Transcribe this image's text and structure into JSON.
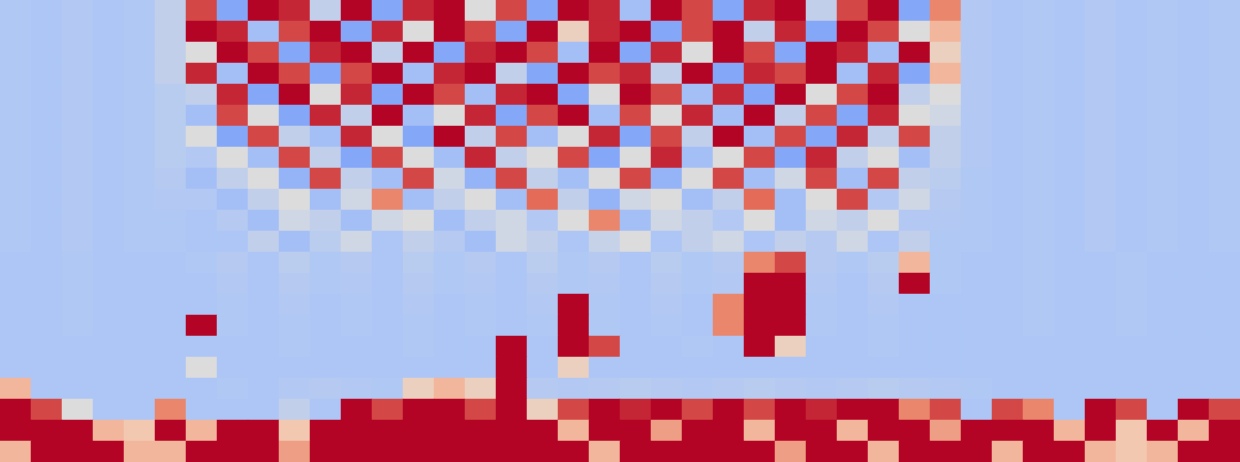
{
  "chart_data": {
    "type": "heatmap",
    "grid": false,
    "tick_labels": false,
    "color": [
      "#3b4cc0",
      "#7b9ff9",
      "#aec7f5",
      "#dddcdc",
      "#f4c6ac",
      "#e8765c",
      "#b40426"
    ],
    "color_range": [
      0,
      1
    ],
    "cells": [
      [
        0.34,
        0.33,
        0.35,
        0.33,
        0.34,
        0.4,
        0.9,
        0.2,
        1,
        0.95,
        0.4,
        1,
        0.2,
        0.95,
        1,
        0.5,
        0.9,
        0.2,
        1,
        0.95,
        0.3,
        1,
        0.9,
        0.2,
        0.95,
        1,
        0.4,
        0.9,
        1,
        0.2,
        0.8,
        0.35,
        0.33,
        0.34,
        0.33,
        0.35,
        0.33,
        0.34,
        0.33,
        0.34
      ],
      [
        0.34,
        0.33,
        0.35,
        0.33,
        0.34,
        0.4,
        1,
        0.95,
        0.3,
        0.9,
        1,
        0.2,
        0.95,
        0.5,
        1,
        0.9,
        0.2,
        1,
        0.6,
        0.95,
        1,
        0.2,
        0.9,
        1,
        0.4,
        0.95,
        0.2,
        1,
        0.9,
        0.5,
        0.7,
        0.35,
        0.33,
        0.34,
        0.33,
        0.35,
        0.33,
        0.34,
        0.33,
        0.34
      ],
      [
        0.34,
        0.33,
        0.35,
        0.33,
        0.34,
        0.4,
        0.5,
        1,
        0.9,
        0.2,
        0.95,
        1,
        0.4,
        1,
        0.2,
        0.95,
        1,
        0.9,
        0.3,
        1,
        0.2,
        0.95,
        0.5,
        1,
        0.9,
        0.2,
        1,
        0.95,
        0.3,
        1,
        0.6,
        0.35,
        0.33,
        0.34,
        0.33,
        0.35,
        0.33,
        0.34,
        0.33,
        0.34
      ],
      [
        0.34,
        0.33,
        0.35,
        0.33,
        0.34,
        0.4,
        0.95,
        0.3,
        1,
        0.9,
        0.2,
        0.9,
        1,
        0.3,
        0.95,
        1,
        0.4,
        0.2,
        1,
        0.9,
        0.95,
        0.4,
        1,
        0.2,
        0.95,
        0.9,
        1,
        0.3,
        0.95,
        0.2,
        0.7,
        0.35,
        0.33,
        0.34,
        0.33,
        0.35,
        0.33,
        0.34,
        0.33,
        0.34
      ],
      [
        0.34,
        0.33,
        0.35,
        0.33,
        0.34,
        0.37,
        0.4,
        0.95,
        0.2,
        1,
        0.5,
        0.95,
        0.2,
        1,
        0.9,
        0.3,
        0.95,
        1,
        0.2,
        0.5,
        1,
        0.9,
        0.3,
        0.95,
        0.2,
        1,
        0.5,
        0.9,
        1,
        0.4,
        0.5,
        0.35,
        0.33,
        0.34,
        0.33,
        0.35,
        0.33,
        0.34,
        0.33,
        0.34
      ],
      [
        0.34,
        0.33,
        0.35,
        0.33,
        0.34,
        0.37,
        0.3,
        0.9,
        0.5,
        0.2,
        0.95,
        0.4,
        1,
        0.3,
        0.5,
        0.95,
        0.2,
        0.9,
        1,
        0.3,
        0.9,
        0.5,
        0.95,
        0.3,
        1,
        0.4,
        0.9,
        0.2,
        0.95,
        0.5,
        0.45,
        0.35,
        0.33,
        0.34,
        0.33,
        0.35,
        0.33,
        0.34,
        0.33,
        0.34
      ],
      [
        0.34,
        0.33,
        0.35,
        0.33,
        0.34,
        0.37,
        0.5,
        0.2,
        0.9,
        0.4,
        0.3,
        0.95,
        0.5,
        0.2,
        1,
        0.4,
        0.9,
        0.3,
        0.5,
        0.95,
        0.2,
        0.9,
        0.4,
        1,
        0.3,
        0.9,
        0.2,
        0.95,
        0.4,
        0.9,
        0.4,
        0.35,
        0.33,
        0.34,
        0.33,
        0.35,
        0.33,
        0.34,
        0.33,
        0.34
      ],
      [
        0.34,
        0.33,
        0.35,
        0.33,
        0.34,
        0.37,
        0.35,
        0.5,
        0.3,
        0.9,
        0.4,
        0.2,
        0.9,
        0.5,
        0.3,
        0.95,
        0.4,
        0.5,
        0.9,
        0.2,
        0.5,
        0.95,
        0.3,
        0.5,
        0.9,
        0.2,
        0.95,
        0.4,
        0.5,
        0.3,
        0.4,
        0.35,
        0.33,
        0.34,
        0.33,
        0.35,
        0.33,
        0.34,
        0.33,
        0.34
      ],
      [
        0.34,
        0.33,
        0.35,
        0.33,
        0.34,
        0.36,
        0.3,
        0.4,
        0.5,
        0.25,
        0.9,
        0.4,
        0.3,
        0.9,
        0.45,
        0.25,
        0.9,
        0.4,
        0.3,
        0.5,
        0.9,
        0.25,
        0.5,
        0.9,
        0.3,
        0.45,
        0.9,
        0.3,
        0.9,
        0.4,
        0.38,
        0.34,
        0.33,
        0.34,
        0.33,
        0.35,
        0.33,
        0.34,
        0.33,
        0.34
      ],
      [
        0.34,
        0.33,
        0.35,
        0.33,
        0.34,
        0.35,
        0.35,
        0.3,
        0.4,
        0.5,
        0.3,
        0.45,
        0.8,
        0.3,
        0.4,
        0.5,
        0.3,
        0.85,
        0.4,
        0.25,
        0.45,
        0.5,
        0.3,
        0.4,
        0.85,
        0.3,
        0.5,
        0.9,
        0.35,
        0.45,
        0.36,
        0.34,
        0.33,
        0.34,
        0.33,
        0.35,
        0.33,
        0.34,
        0.33,
        0.34
      ],
      [
        0.34,
        0.33,
        0.35,
        0.33,
        0.34,
        0.34,
        0.33,
        0.36,
        0.3,
        0.45,
        0.4,
        0.3,
        0.45,
        0.5,
        0.3,
        0.4,
        0.45,
        0.35,
        0.5,
        0.8,
        0.3,
        0.45,
        0.4,
        0.35,
        0.5,
        0.3,
        0.45,
        0.4,
        0.5,
        0.35,
        0.35,
        0.34,
        0.33,
        0.34,
        0.33,
        0.35,
        0.33,
        0.34,
        0.33,
        0.34
      ],
      [
        0.34,
        0.33,
        0.35,
        0.33,
        0.34,
        0.34,
        0.33,
        0.33,
        0.4,
        0.3,
        0.38,
        0.45,
        0.33,
        0.4,
        0.36,
        0.3,
        0.45,
        0.4,
        0.33,
        0.42,
        0.5,
        0.33,
        0.4,
        0.45,
        0.33,
        0.4,
        0.36,
        0.45,
        0.33,
        0.4,
        0.34,
        0.34,
        0.33,
        0.34,
        0.33,
        0.35,
        0.33,
        0.34,
        0.33,
        0.34
      ],
      [
        0.33,
        0.33,
        0.34,
        0.33,
        0.33,
        0.33,
        0.34,
        0.36,
        0.33,
        0.38,
        0.34,
        0.36,
        0.33,
        0.37,
        0.34,
        0.36,
        0.33,
        0.38,
        0.34,
        0.36,
        0.33,
        0.37,
        0.34,
        0.36,
        0.8,
        0.9,
        0.36,
        0.34,
        0.37,
        0.7,
        0.34,
        0.33,
        0.33,
        0.34,
        0.33,
        0.33,
        0.34,
        0.33,
        0.33,
        0.33
      ],
      [
        0.33,
        0.33,
        0.34,
        0.33,
        0.33,
        0.33,
        0.33,
        0.35,
        0.33,
        0.36,
        0.34,
        0.35,
        0.33,
        0.36,
        0.34,
        0.35,
        0.33,
        0.36,
        0.34,
        0.35,
        0.33,
        0.36,
        0.34,
        0.35,
        1,
        1,
        0.35,
        0.33,
        0.36,
        1,
        0.34,
        0.33,
        0.33,
        0.34,
        0.33,
        0.33,
        0.34,
        0.33,
        0.33,
        0.33
      ],
      [
        0.33,
        0.33,
        0.34,
        0.33,
        0.33,
        0.33,
        0.33,
        0.34,
        0.33,
        0.35,
        0.33,
        0.34,
        0.33,
        0.35,
        0.33,
        0.34,
        0.33,
        0.35,
        1,
        0.34,
        0.33,
        0.35,
        0.33,
        0.8,
        1,
        1,
        0.34,
        0.33,
        0.35,
        0.33,
        0.33,
        0.33,
        0.33,
        0.34,
        0.33,
        0.33,
        0.34,
        0.33,
        0.33,
        0.33
      ],
      [
        0.33,
        0.33,
        0.34,
        0.33,
        0.33,
        0.33,
        1,
        0.34,
        0.33,
        0.34,
        0.33,
        0.34,
        0.33,
        0.34,
        0.33,
        0.34,
        0.33,
        0.34,
        1,
        0.34,
        0.33,
        0.34,
        0.33,
        0.8,
        1,
        1,
        0.34,
        0.33,
        0.34,
        0.33,
        0.33,
        0.33,
        0.33,
        0.34,
        0.33,
        0.33,
        0.34,
        0.33,
        0.33,
        0.33
      ],
      [
        0.33,
        0.33,
        0.33,
        0.33,
        0.33,
        0.33,
        0.33,
        0.33,
        0.33,
        0.34,
        0.33,
        0.33,
        0.33,
        0.34,
        0.33,
        0.33,
        1,
        0.33,
        1,
        0.9,
        0.33,
        0.33,
        0.34,
        0.33,
        1,
        0.6,
        0.33,
        0.33,
        0.34,
        0.33,
        0.33,
        0.33,
        0.33,
        0.33,
        0.33,
        0.33,
        0.33,
        0.33,
        0.33,
        0.33
      ],
      [
        0.33,
        0.33,
        0.33,
        0.33,
        0.33,
        0.33,
        0.5,
        0.33,
        0.33,
        0.33,
        0.33,
        0.33,
        0.33,
        0.33,
        0.33,
        0.33,
        1,
        0.33,
        0.6,
        0.33,
        0.33,
        0.33,
        0.33,
        0.33,
        0.33,
        0.33,
        0.33,
        0.33,
        0.33,
        0.33,
        0.33,
        0.33,
        0.33,
        0.33,
        0.33,
        0.33,
        0.33,
        0.33,
        0.33,
        0.33
      ],
      [
        0.7,
        0.33,
        0.33,
        0.33,
        0.33,
        0.33,
        0.33,
        0.34,
        0.33,
        0.35,
        0.36,
        0.35,
        0.34,
        0.6,
        0.7,
        0.6,
        1,
        0.36,
        0.35,
        0.36,
        0.37,
        0.36,
        0.35,
        0.36,
        0.37,
        0.36,
        0.35,
        0.36,
        0.37,
        0.36,
        0.35,
        0.34,
        0.33,
        0.33,
        0.33,
        0.33,
        0.33,
        0.33,
        0.33,
        0.33
      ],
      [
        1,
        0.9,
        0.5,
        0.33,
        0.33,
        0.8,
        0.33,
        0.33,
        0.33,
        0.4,
        0.33,
        1,
        0.9,
        1,
        1,
        0.9,
        1,
        0.6,
        0.9,
        1,
        0.95,
        1,
        0.9,
        1,
        0.9,
        1,
        0.95,
        1,
        1,
        0.8,
        0.9,
        0.33,
        0.9,
        0.8,
        0.33,
        1,
        0.9,
        0.33,
        1,
        0.9
      ],
      [
        1,
        1,
        1,
        0.7,
        0.65,
        1,
        0.7,
        1,
        1,
        0.65,
        1,
        1,
        1,
        1,
        1,
        1,
        1,
        1,
        0.7,
        1,
        1,
        0.75,
        1,
        1,
        0.7,
        1,
        1,
        0.7,
        1,
        1,
        0.75,
        1,
        1,
        1,
        0.7,
        1,
        0.65,
        1,
        0.7,
        1
      ],
      [
        0.7,
        1,
        1,
        1,
        0.7,
        0.7,
        1,
        1,
        1,
        0.75,
        1,
        1,
        1,
        1,
        1,
        1,
        1,
        1,
        1,
        0.7,
        1,
        1,
        1,
        1,
        1,
        0.75,
        1,
        1,
        0.7,
        1,
        1,
        1,
        0.7,
        1,
        1,
        0.7,
        0.65,
        0.7,
        1,
        1
      ]
    ]
  }
}
